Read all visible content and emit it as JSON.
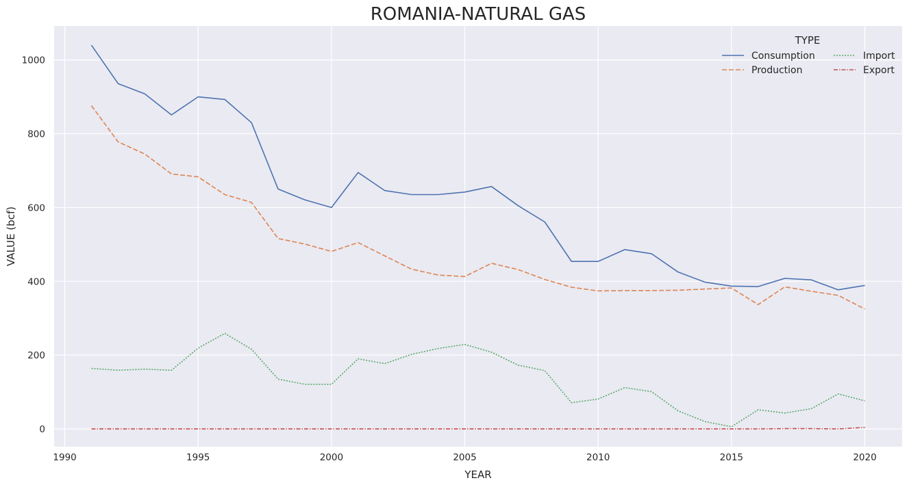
{
  "chart_data": {
    "type": "line",
    "title": "ROMANIA-NATURAL GAS",
    "xlabel": "YEAR",
    "ylabel": "VALUE (bcf)",
    "xlim": [
      1989.6,
      2021.4
    ],
    "ylim": [
      -48,
      1092
    ],
    "x_ticks": [
      1990,
      1995,
      2000,
      2005,
      2010,
      2015,
      2020
    ],
    "y_ticks": [
      0,
      200,
      400,
      600,
      800,
      1000
    ],
    "grid": true,
    "legend": {
      "title": "TYPE",
      "placement": "top-right"
    },
    "colors": {
      "background": "#eaeaf2",
      "grid": "#ffffff"
    },
    "x": [
      1991,
      1992,
      1993,
      1994,
      1995,
      1996,
      1997,
      1998,
      1999,
      2000,
      2001,
      2002,
      2003,
      2004,
      2005,
      2006,
      2007,
      2008,
      2009,
      2010,
      2011,
      2012,
      2013,
      2014,
      2015,
      2016,
      2017,
      2018,
      2019,
      2020
    ],
    "series": [
      {
        "name": "Consumption",
        "color": "#4c72b0",
        "dash": "solid",
        "values": [
          1040,
          936,
          908,
          851,
          900,
          893,
          830,
          650,
          621,
          600,
          695,
          646,
          635,
          635,
          642,
          657,
          605,
          561,
          454,
          454,
          486,
          475,
          425,
          398,
          387,
          386,
          408,
          404,
          377,
          389
        ]
      },
      {
        "name": "Production",
        "color": "#dd8452",
        "dash": "dashed",
        "values": [
          876,
          778,
          745,
          691,
          683,
          635,
          614,
          516,
          501,
          481,
          505,
          469,
          433,
          417,
          413,
          449,
          432,
          405,
          384,
          374,
          375,
          375,
          376,
          379,
          382,
          337,
          385,
          373,
          362,
          325
        ]
      },
      {
        "name": "Import",
        "color": "#55a868",
        "dash": "dotted",
        "values": [
          164,
          159,
          162,
          159,
          219,
          259,
          216,
          135,
          121,
          121,
          190,
          177,
          202,
          218,
          229,
          208,
          173,
          158,
          71,
          81,
          112,
          101,
          49,
          20,
          6,
          52,
          43,
          55,
          95,
          76
        ]
      },
      {
        "name": "Export",
        "color": "#c44e52",
        "dash": "dashdot",
        "values": [
          0,
          0,
          0,
          0,
          0,
          0,
          0,
          0,
          0,
          0,
          0,
          0,
          0,
          0,
          0,
          0,
          0,
          0,
          0,
          0,
          0,
          0,
          0,
          0,
          0,
          0,
          1,
          1,
          0,
          4
        ]
      }
    ]
  }
}
